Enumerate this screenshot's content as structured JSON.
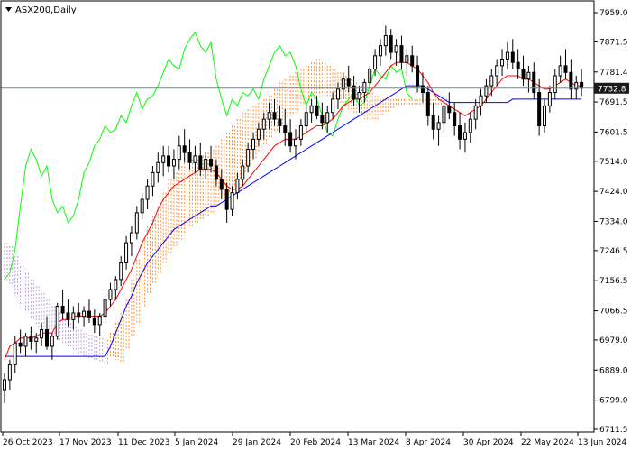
{
  "chart_data": {
    "type": "line",
    "title": "ASX200,Daily",
    "xlabel": "",
    "ylabel": "",
    "ylim": [
      6711.5,
      7959.0
    ],
    "current_price": "7732.8",
    "y_ticks": [
      "7959.0",
      "7871.5",
      "7781.4",
      "7691.5",
      "7601.5",
      "7514.0",
      "7424.0",
      "7334.0",
      "7246.5",
      "7156.5",
      "7066.5",
      "6979.0",
      "6889.0",
      "6799.0",
      "6711.5"
    ],
    "x_ticks": [
      "26 Oct 2023",
      "17 Nov 2023",
      "11 Dec 2023",
      "5 Jan 2024",
      "29 Jan 2024",
      "20 Feb 2024",
      "13 Mar 2024",
      "8 Apr 2024",
      "30 Apr 2024",
      "22 May 2024",
      "13 Jun 2024"
    ],
    "grid": false,
    "colors": {
      "chikou": "#00ff00",
      "tenkan": "#ff0000",
      "kijun": "#0000ff",
      "cloud_bull": "#ff8c2a",
      "cloud_bear": "#b89ad9",
      "candle": "#000000",
      "price_line": "#5f8c9c",
      "price_tag": "#1a1a1a"
    },
    "series": [
      {
        "values": [
          [
            6830,
            6880,
            6790,
            6860
          ],
          [
            6860,
            6920,
            6830,
            6905
          ],
          [
            6905,
            6990,
            6880,
            6970
          ],
          [
            6970,
            7010,
            6940,
            6960
          ],
          [
            6960,
            7000,
            6930,
            6990
          ],
          [
            6990,
            7020,
            6950,
            6975
          ],
          [
            6975,
            7000,
            6940,
            6985
          ],
          [
            6985,
            7030,
            6960,
            7010
          ],
          [
            7010,
            7050,
            6950,
            6960
          ],
          [
            6960,
            7000,
            6920,
            6990
          ],
          [
            6990,
            7090,
            6980,
            7080
          ],
          [
            7080,
            7130,
            7040,
            7060
          ],
          [
            7060,
            7100,
            7020,
            7040
          ],
          [
            7040,
            7080,
            7010,
            7060
          ],
          [
            7060,
            7090,
            7030,
            7050
          ],
          [
            7050,
            7080,
            7020,
            7065
          ],
          [
            7065,
            7100,
            7030,
            7045
          ],
          [
            7045,
            7070,
            7000,
            7025
          ],
          [
            7025,
            7060,
            6990,
            7050
          ],
          [
            7050,
            7120,
            7030,
            7100
          ],
          [
            7100,
            7150,
            7080,
            7130
          ],
          [
            7130,
            7170,
            7100,
            7160
          ],
          [
            7160,
            7230,
            7140,
            7210
          ],
          [
            7210,
            7290,
            7190,
            7270
          ],
          [
            7270,
            7320,
            7230,
            7300
          ],
          [
            7300,
            7380,
            7280,
            7360
          ],
          [
            7360,
            7420,
            7340,
            7400
          ],
          [
            7400,
            7460,
            7370,
            7440
          ],
          [
            7440,
            7500,
            7410,
            7480
          ],
          [
            7480,
            7540,
            7450,
            7510
          ],
          [
            7510,
            7560,
            7470,
            7530
          ],
          [
            7530,
            7560,
            7480,
            7500
          ],
          [
            7500,
            7550,
            7460,
            7520
          ],
          [
            7520,
            7590,
            7490,
            7560
          ],
          [
            7560,
            7610,
            7510,
            7540
          ],
          [
            7540,
            7580,
            7490,
            7510
          ],
          [
            7510,
            7560,
            7480,
            7530
          ],
          [
            7530,
            7570,
            7470,
            7490
          ],
          [
            7490,
            7540,
            7460,
            7520
          ],
          [
            7520,
            7560,
            7480,
            7500
          ],
          [
            7500,
            7520,
            7440,
            7460
          ],
          [
            7460,
            7490,
            7400,
            7430
          ],
          [
            7430,
            7450,
            7330,
            7370
          ],
          [
            7370,
            7440,
            7350,
            7420
          ],
          [
            7420,
            7480,
            7400,
            7460
          ],
          [
            7460,
            7520,
            7440,
            7500
          ],
          [
            7500,
            7570,
            7480,
            7550
          ],
          [
            7550,
            7600,
            7520,
            7580
          ],
          [
            7580,
            7630,
            7560,
            7610
          ],
          [
            7610,
            7660,
            7580,
            7640
          ],
          [
            7640,
            7690,
            7610,
            7660
          ],
          [
            7660,
            7700,
            7620,
            7640
          ],
          [
            7640,
            7680,
            7600,
            7620
          ],
          [
            7620,
            7670,
            7560,
            7600
          ],
          [
            7600,
            7640,
            7540,
            7560
          ],
          [
            7560,
            7610,
            7520,
            7580
          ],
          [
            7580,
            7640,
            7560,
            7620
          ],
          [
            7620,
            7680,
            7600,
            7660
          ],
          [
            7660,
            7700,
            7630,
            7680
          ],
          [
            7680,
            7710,
            7640,
            7650
          ],
          [
            7650,
            7690,
            7610,
            7630
          ],
          [
            7630,
            7680,
            7600,
            7660
          ],
          [
            7660,
            7720,
            7640,
            7700
          ],
          [
            7700,
            7750,
            7670,
            7730
          ],
          [
            7730,
            7780,
            7700,
            7760
          ],
          [
            7760,
            7800,
            7720,
            7740
          ],
          [
            7740,
            7770,
            7680,
            7700
          ],
          [
            7700,
            7740,
            7660,
            7720
          ],
          [
            7720,
            7760,
            7690,
            7750
          ],
          [
            7750,
            7800,
            7730,
            7790
          ],
          [
            7790,
            7850,
            7770,
            7830
          ],
          [
            7830,
            7880,
            7800,
            7860
          ],
          [
            7860,
            7920,
            7830,
            7890
          ],
          [
            7890,
            7910,
            7820,
            7840
          ],
          [
            7840,
            7880,
            7800,
            7860
          ],
          [
            7860,
            7890,
            7790,
            7810
          ],
          [
            7810,
            7850,
            7770,
            7830
          ],
          [
            7830,
            7860,
            7780,
            7800
          ],
          [
            7800,
            7830,
            7720,
            7740
          ],
          [
            7740,
            7780,
            7690,
            7720
          ],
          [
            7720,
            7740,
            7620,
            7650
          ],
          [
            7650,
            7690,
            7580,
            7610
          ],
          [
            7610,
            7650,
            7560,
            7630
          ],
          [
            7630,
            7700,
            7600,
            7680
          ],
          [
            7680,
            7720,
            7640,
            7660
          ],
          [
            7660,
            7690,
            7590,
            7620
          ],
          [
            7620,
            7660,
            7550,
            7580
          ],
          [
            7580,
            7630,
            7540,
            7600
          ],
          [
            7600,
            7660,
            7570,
            7640
          ],
          [
            7640,
            7700,
            7610,
            7680
          ],
          [
            7680,
            7730,
            7650,
            7710
          ],
          [
            7710,
            7760,
            7690,
            7740
          ],
          [
            7740,
            7790,
            7710,
            7770
          ],
          [
            7770,
            7820,
            7740,
            7800
          ],
          [
            7800,
            7850,
            7770,
            7820
          ],
          [
            7820,
            7870,
            7790,
            7840
          ],
          [
            7840,
            7880,
            7790,
            7810
          ],
          [
            7810,
            7850,
            7760,
            7790
          ],
          [
            7790,
            7830,
            7740,
            7760
          ],
          [
            7760,
            7800,
            7720,
            7780
          ],
          [
            7780,
            7810,
            7700,
            7720
          ],
          [
            7720,
            7760,
            7590,
            7620
          ],
          [
            7620,
            7700,
            7600,
            7680
          ],
          [
            7680,
            7740,
            7660,
            7720
          ],
          [
            7720,
            7790,
            7700,
            7770
          ],
          [
            7770,
            7830,
            7750,
            7800
          ],
          [
            7800,
            7850,
            7760,
            7780
          ],
          [
            7780,
            7820,
            7700,
            7730
          ],
          [
            7730,
            7770,
            7700,
            7750
          ],
          [
            7750,
            7790,
            7710,
            7733
          ]
        ]
      },
      {
        "values": [
          6920,
          6960,
          6970,
          6985,
          6985,
          6985,
          6990,
          7000,
          7000,
          7000,
          7030,
          7040,
          7040,
          7050,
          7050,
          7050,
          7050,
          7050,
          7050,
          7060,
          7080,
          7100,
          7130,
          7160,
          7190,
          7230,
          7270,
          7300,
          7330,
          7370,
          7400,
          7420,
          7440,
          7450,
          7460,
          7470,
          7480,
          7490,
          7490,
          7490,
          7480,
          7460,
          7440,
          7430,
          7430,
          7440,
          7460,
          7480,
          7500,
          7520,
          7540,
          7560,
          7570,
          7580,
          7580,
          7580,
          7590,
          7600,
          7610,
          7620,
          7620,
          7630,
          7640,
          7660,
          7680,
          7690,
          7700,
          7700,
          7710,
          7720,
          7740,
          7760,
          7780,
          7800,
          7810,
          7810,
          7810,
          7800,
          7790,
          7770,
          7750,
          7720,
          7700,
          7690,
          7680,
          7670,
          7660,
          7650,
          7660,
          7670,
          7680,
          7700,
          7720,
          7740,
          7760,
          7770,
          7770,
          7770,
          7760,
          7760,
          7750,
          7740,
          7730,
          7730,
          7740,
          7750,
          7760,
          7750,
          7740,
          7740
        ]
      },
      {
        "values": [
          6930,
          6930,
          6930,
          6930,
          6930,
          6930,
          6930,
          6930,
          6930,
          6930,
          6930,
          6930,
          6930,
          6930,
          6930,
          6930,
          6930,
          6930,
          6930,
          6930,
          6960,
          7000,
          7040,
          7080,
          7110,
          7150,
          7180,
          7210,
          7230,
          7250,
          7270,
          7290,
          7310,
          7320,
          7330,
          7340,
          7350,
          7360,
          7370,
          7380,
          7380,
          7390,
          7400,
          7410,
          7420,
          7430,
          7440,
          7450,
          7460,
          7470,
          7480,
          7490,
          7500,
          7510,
          7520,
          7530,
          7540,
          7550,
          7560,
          7570,
          7580,
          7590,
          7600,
          7610,
          7620,
          7630,
          7640,
          7650,
          7660,
          7670,
          7680,
          7690,
          7700,
          7710,
          7720,
          7730,
          7740,
          7740,
          7740,
          7740,
          7730,
          7720,
          7710,
          7700,
          7690,
          7690,
          7690,
          7690,
          7690,
          7690,
          7690,
          7690,
          7690,
          7690,
          7690,
          7690,
          7700,
          7700,
          7700,
          7700,
          7700,
          7700,
          7700,
          7700,
          7700,
          7700,
          7700,
          7700,
          7700,
          7700
        ]
      },
      {
        "values": [
          7160,
          7180,
          7250,
          7380,
          7500,
          7550,
          7520,
          7470,
          7500,
          7400,
          7360,
          7380,
          7330,
          7350,
          7400,
          7480,
          7510,
          7560,
          7580,
          7620,
          7600,
          7610,
          7650,
          7630,
          7680,
          7720,
          7670,
          7700,
          7710,
          7740,
          7780,
          7820,
          7800,
          7790,
          7850,
          7880,
          7900,
          7860,
          7840,
          7870,
          7760,
          7700,
          7650,
          7700,
          7680,
          7720,
          7710,
          7730,
          7700,
          7760,
          7800,
          7840,
          7860,
          7830,
          7840,
          7800,
          7730,
          7680,
          7720,
          7700,
          7650,
          7600,
          7590,
          7640,
          7680,
          7700,
          7720,
          7680,
          7690,
          7740,
          7790,
          7770,
          7760,
          7800,
          7780,
          7790,
          7720,
          7700
        ]
      }
    ],
    "cloud": {
      "bull": [
        {
          "upper": [
            7000,
            7030,
            7060,
            7100,
            7160,
            7220,
            7280,
            7320,
            7350,
            7380,
            7420,
            7460,
            7480,
            7500,
            7510,
            7520,
            7520,
            7530,
            7540,
            7550,
            7560,
            7580,
            7600,
            7620,
            7640,
            7660,
            7670,
            7680,
            7690,
            7700,
            7710,
            7730,
            7750,
            7760,
            7770,
            7780,
            7790,
            7800,
            7810,
            7820,
            7810,
            7800,
            7790,
            7780,
            7770,
            7760,
            7750,
            7740,
            7730,
            7720,
            7710,
            7700,
            7700,
            7700,
            7700,
            7700,
            7700,
            7700,
            7700,
            7700,
            7700,
            7700,
            7700,
            7700
          ],
          "lower": [
            6930,
            6920,
            6910,
            6950,
            6990,
            7030,
            7080,
            7120,
            7150,
            7180,
            7210,
            7240,
            7260,
            7280,
            7300,
            7320,
            7330,
            7340,
            7350,
            7360,
            7380,
            7400,
            7420,
            7440,
            7460,
            7480,
            7500,
            7520,
            7540,
            7560,
            7580,
            7600,
            7620,
            7640,
            7650,
            7660,
            7680,
            7690,
            7700,
            7710,
            7710,
            7710,
            7700,
            7690,
            7680,
            7670,
            7660,
            7650,
            7640,
            7640,
            7640,
            7650,
            7660,
            7670,
            7680,
            7680,
            7680,
            7680,
            7680,
            7680,
            7680,
            7680,
            7680,
            7680
          ]
        }
      ],
      "bear": [
        {
          "upper": [
            7270,
            7260,
            7230,
            7200,
            7180,
            7160,
            7140,
            7120,
            7100,
            7080,
            7060,
            7040,
            7030,
            7020,
            7010,
            7000,
            6995,
            6990,
            6985,
            6980
          ],
          "lower": [
            7160,
            7140,
            7110,
            7080,
            7060,
            7040,
            7020,
            7010,
            7000,
            6990,
            6980,
            6970,
            6960,
            6950,
            6940,
            6930,
            6925,
            6920,
            6915,
            6910
          ]
        }
      ]
    }
  }
}
